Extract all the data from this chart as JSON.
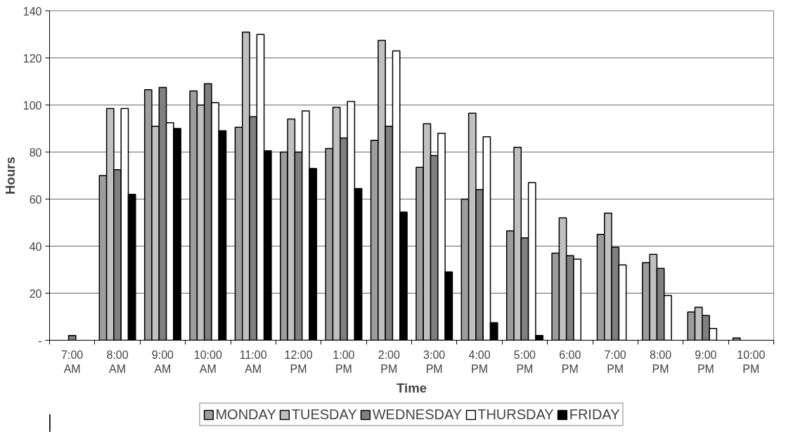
{
  "chart_data": {
    "type": "bar",
    "xlabel": "Time",
    "ylabel": "Hours",
    "categories": [
      "7:00 AM",
      "8:00 AM",
      "9:00 AM",
      "10:00 AM",
      "11:00 AM",
      "12:00 PM",
      "1:00 PM",
      "2:00 PM",
      "3:00 PM",
      "4:00 PM",
      "5:00 PM",
      "6:00 PM",
      "7:00 PM",
      "8:00 PM",
      "9:00 PM",
      "10:00 PM"
    ],
    "series": [
      {
        "name": "MONDAY",
        "color": "#9d9d9d",
        "values": [
          null,
          70,
          106.5,
          106,
          90.5,
          80,
          81.5,
          85,
          73.5,
          60,
          46.5,
          37,
          45,
          33,
          12,
          1
        ]
      },
      {
        "name": "TUESDAY",
        "color": "#c0c0c0",
        "values": [
          null,
          98.5,
          91,
          100,
          131,
          94,
          99,
          127.5,
          92,
          96.5,
          82,
          52,
          54,
          36.5,
          14,
          null
        ]
      },
      {
        "name": "WEDNESDAY",
        "color": "#808080",
        "values": [
          2,
          72.5,
          107.5,
          109,
          95,
          80,
          86,
          91,
          78.5,
          64,
          43.5,
          36,
          39.5,
          30.5,
          10.5,
          null
        ]
      },
      {
        "name": "THURSDAY",
        "color": "#ffffff",
        "values": [
          null,
          98.5,
          92.5,
          101,
          130,
          97.5,
          101.5,
          123,
          88,
          86.5,
          67,
          34.5,
          32,
          19,
          5,
          null
        ]
      },
      {
        "name": "FRIDAY",
        "color": "#000000",
        "values": [
          null,
          62,
          90,
          89,
          80.5,
          73,
          64.5,
          54.5,
          29,
          7.5,
          2,
          null,
          null,
          null,
          null,
          null
        ]
      }
    ],
    "ylim": [
      0,
      140
    ],
    "yticks": [
      {
        "value": 0,
        "label": "-"
      },
      20,
      40,
      60,
      80,
      100,
      120,
      140
    ],
    "grid": "y",
    "legend": "bottom"
  }
}
